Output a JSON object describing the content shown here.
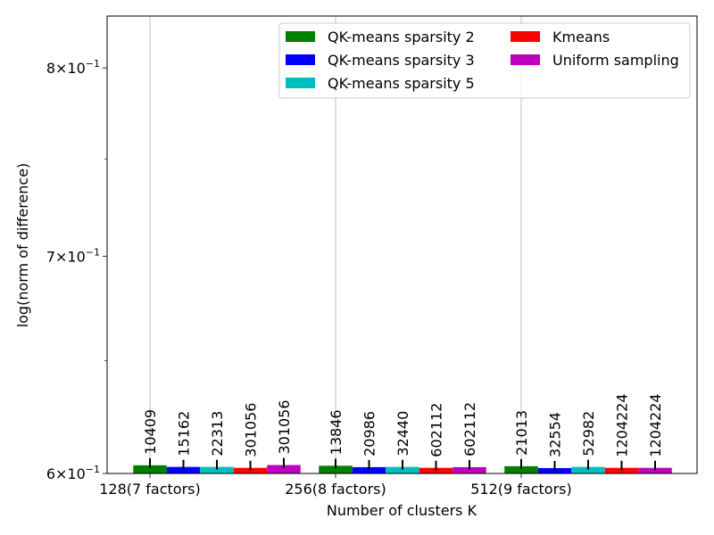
{
  "chart_data": {
    "type": "bar",
    "title": "",
    "xlabel": "Number of clusters K",
    "ylabel": "log(norm of difference)",
    "yscale": "log",
    "ylim": [
      0.6,
      0.83
    ],
    "categories": [
      "128(7 factors)",
      "256(8 factors)",
      "512(9 factors)"
    ],
    "yticks": [
      {
        "value": 0.6,
        "mantissa": "6",
        "base": "10",
        "exp": "−1"
      },
      {
        "value": 0.7,
        "mantissa": "7",
        "base": "10",
        "exp": "−1"
      },
      {
        "value": 0.8,
        "mantissa": "8",
        "base": "10",
        "exp": "−1"
      }
    ],
    "grid": "x",
    "legend_position": "top-right",
    "series": [
      {
        "name": "QK-means sparsity 2",
        "color": "#008000",
        "values": [
          0.6035,
          0.6033,
          0.6031
        ],
        "labels": [
          "10409",
          "13846",
          "21013"
        ]
      },
      {
        "name": "QK-means sparsity 3",
        "color": "#0000ff",
        "values": [
          0.6028,
          0.6027,
          0.6023
        ],
        "labels": [
          "15162",
          "20986",
          "32554"
        ]
      },
      {
        "name": "QK-means sparsity 5",
        "color": "#00bfbf",
        "values": [
          0.6028,
          0.6028,
          0.6028
        ],
        "labels": [
          "22313",
          "32440",
          "52982"
        ]
      },
      {
        "name": "Kmeans",
        "color": "#ff0000",
        "values": [
          0.6024,
          0.6024,
          0.6024
        ],
        "labels": [
          "301056",
          "602112",
          "1204224"
        ]
      },
      {
        "name": "Uniform sampling",
        "color": "#bf00bf",
        "values": [
          0.6036,
          0.6027,
          0.6024
        ],
        "labels": [
          "301056",
          "602112",
          "1204224"
        ]
      }
    ]
  }
}
